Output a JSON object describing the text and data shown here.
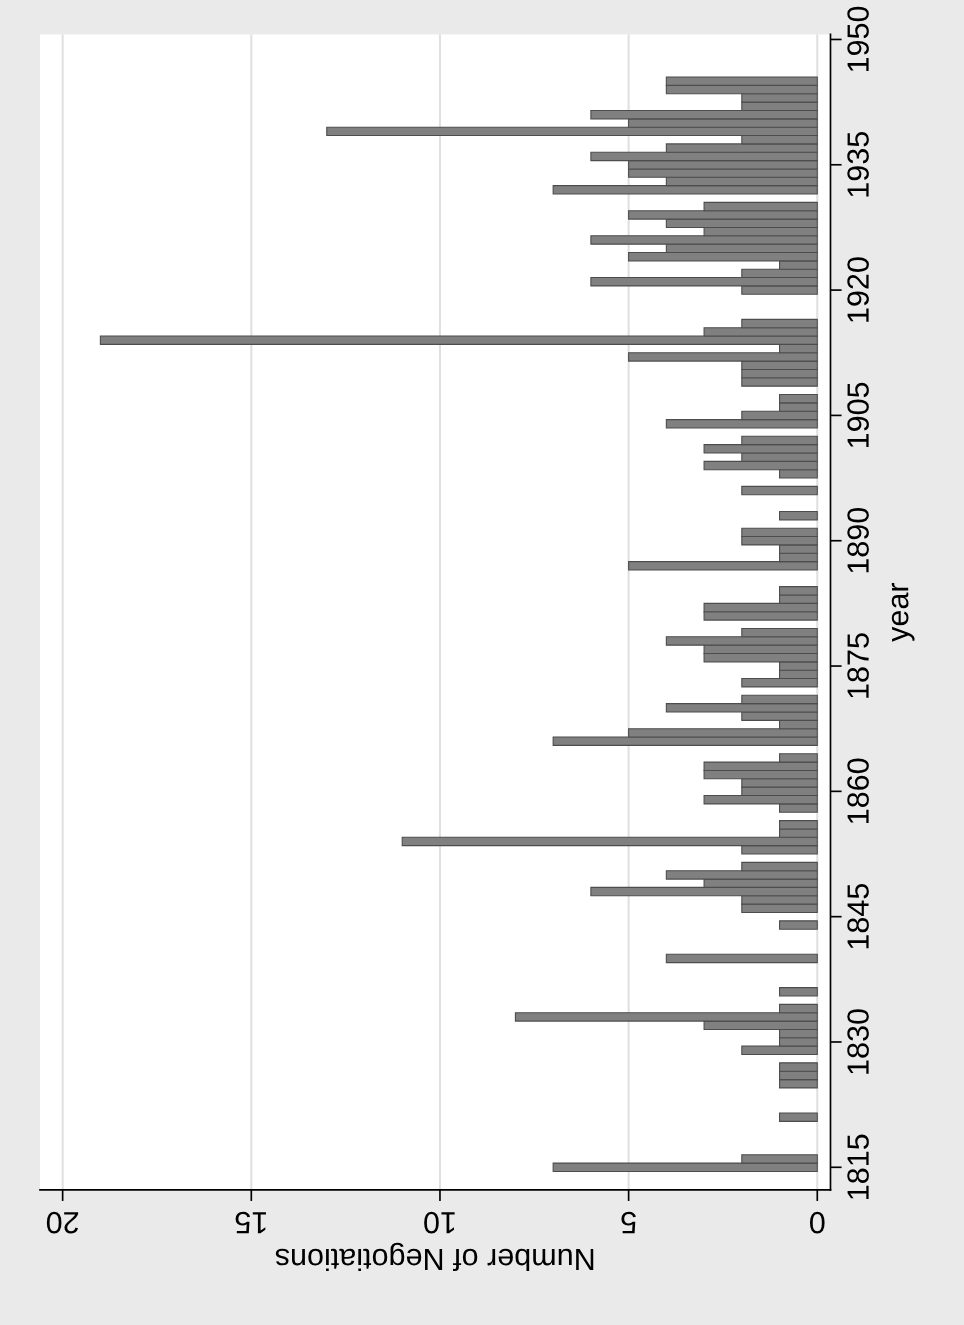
{
  "chart_data": {
    "type": "bar",
    "orientation": "horizontal",
    "xlabel": "Number of Negotiations",
    "ylabel": "year",
    "x": [
      1815,
      1816,
      1821,
      1825,
      1826,
      1827,
      1829,
      1830,
      1831,
      1832,
      1833,
      1834,
      1836,
      1840,
      1844,
      1846,
      1847,
      1848,
      1849,
      1850,
      1851,
      1853,
      1854,
      1855,
      1856,
      1858,
      1859,
      1860,
      1861,
      1862,
      1863,
      1864,
      1866,
      1867,
      1868,
      1869,
      1870,
      1871,
      1873,
      1874,
      1875,
      1876,
      1877,
      1878,
      1879,
      1881,
      1882,
      1883,
      1884,
      1887,
      1888,
      1889,
      1890,
      1891,
      1893,
      1896,
      1898,
      1899,
      1900,
      1901,
      1902,
      1904,
      1905,
      1906,
      1907,
      1909,
      1910,
      1911,
      1912,
      1913,
      1914,
      1915,
      1916,
      1920,
      1921,
      1922,
      1923,
      1924,
      1925,
      1926,
      1927,
      1928,
      1929,
      1930,
      1932,
      1933,
      1934,
      1935,
      1936,
      1937,
      1938,
      1939,
      1940,
      1941,
      1942,
      1943,
      1944,
      1945
    ],
    "values": [
      7,
      2,
      1,
      1,
      1,
      1,
      2,
      1,
      1,
      3,
      8,
      1,
      1,
      4,
      1,
      2,
      2,
      6,
      3,
      4,
      2,
      2,
      11,
      1,
      1,
      1,
      3,
      2,
      2,
      3,
      3,
      1,
      7,
      5,
      1,
      2,
      4,
      2,
      2,
      1,
      1,
      3,
      3,
      4,
      2,
      3,
      3,
      1,
      1,
      5,
      1,
      1,
      2,
      2,
      1,
      2,
      1,
      3,
      2,
      3,
      2,
      4,
      2,
      1,
      1,
      2,
      2,
      2,
      5,
      1,
      19,
      3,
      2,
      2,
      6,
      2,
      1,
      5,
      4,
      6,
      3,
      4,
      5,
      3,
      7,
      4,
      5,
      5,
      6,
      4,
      2,
      13,
      5,
      6,
      2,
      2,
      4,
      4
    ],
    "color": "#808080",
    "xlim": [
      20.6,
      -0.35
    ],
    "xticks": [
      0,
      5,
      10,
      15,
      20
    ],
    "ylim": [
      1812.3,
      1950.6
    ],
    "yticks": [
      1815,
      1830,
      1845,
      1860,
      1875,
      1890,
      1905,
      1920,
      1935,
      1950
    ],
    "grid": "x"
  }
}
